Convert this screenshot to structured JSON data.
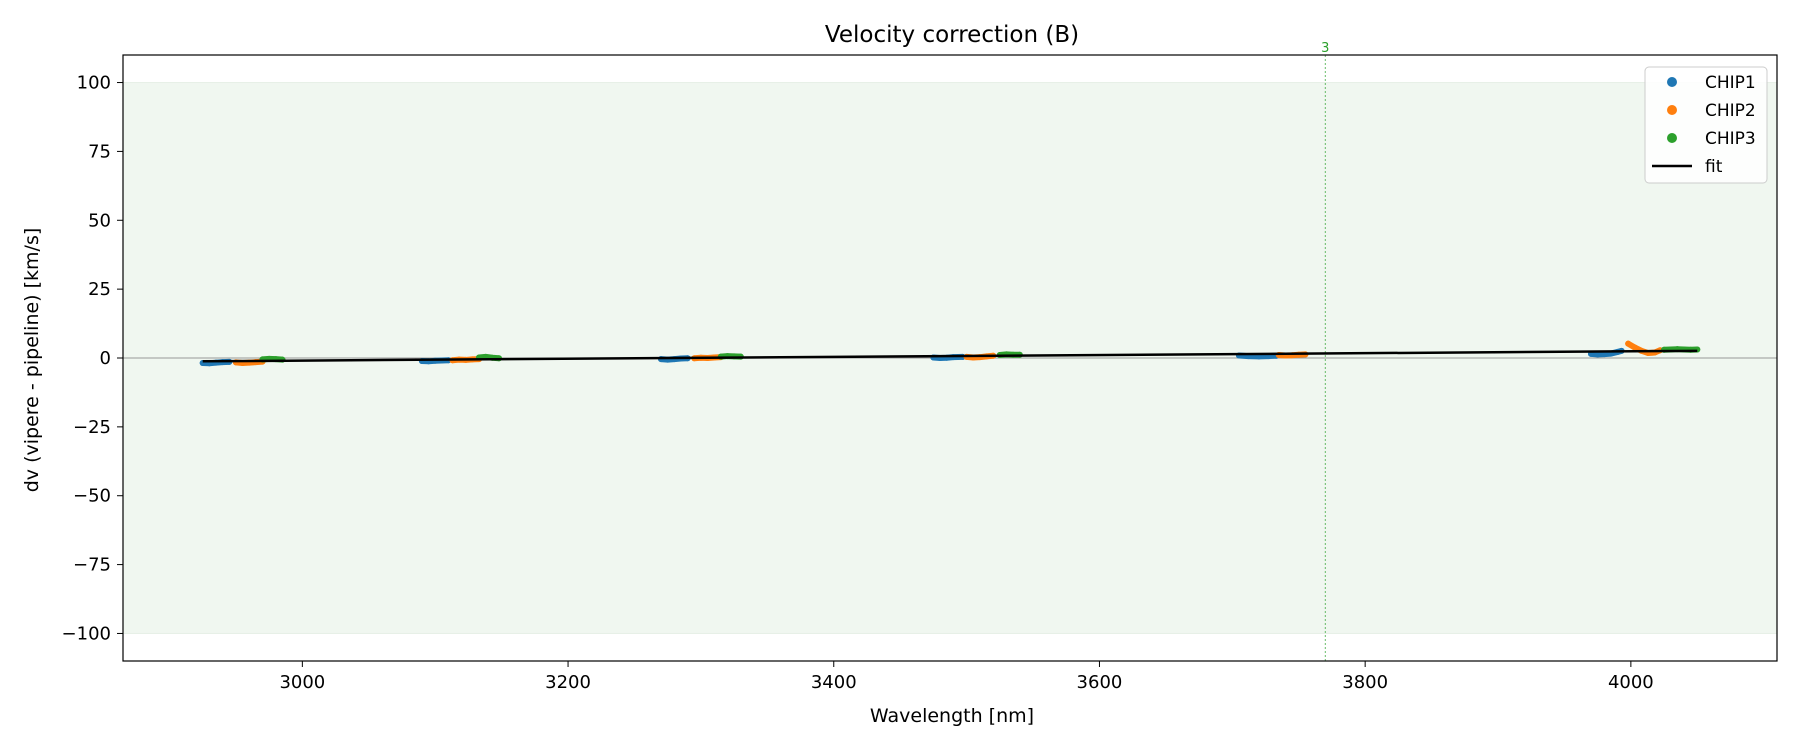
{
  "chart_data": {
    "type": "scatter",
    "title": "Velocity correction (B)",
    "xlabel": "Wavelength [nm]",
    "ylabel": "dv (vipere - pipeline) [km/s]",
    "xlim": [
      2865,
      4110
    ],
    "ylim": [
      -110,
      110
    ],
    "xticks": [
      3000,
      3200,
      3400,
      3600,
      3800,
      4000
    ],
    "yticks": [
      100,
      75,
      50,
      25,
      0,
      -25,
      -50,
      -75,
      -100
    ],
    "xtick_labels": [
      "3000",
      "3200",
      "3400",
      "3600",
      "3800",
      "4000"
    ],
    "ytick_labels": [
      "100",
      "75",
      "50",
      "25",
      "0",
      "−25",
      "−50",
      "−75",
      "−100"
    ],
    "shaded_band": [
      -100,
      100
    ],
    "zero_line": 0,
    "vertical_marker": {
      "x": 3770,
      "label": "3",
      "color": "#2ca02c"
    },
    "legend_position": "upper right",
    "colors": {
      "CHIP1": "#1f77b4",
      "CHIP2": "#ff7f0e",
      "CHIP3": "#2ca02c",
      "fit": "#000000",
      "band": "#f0f7f0"
    },
    "series": [
      {
        "name": "CHIP1",
        "segments": [
          {
            "x": [
              2925,
              2930,
              2935,
              2940,
              2945
            ],
            "y": [
              -1.8,
              -1.9,
              -1.7,
              -1.5,
              -1.4
            ]
          },
          {
            "x": [
              3090,
              3095,
              3100,
              3105,
              3110
            ],
            "y": [
              -1.1,
              -1.2,
              -1.0,
              -0.9,
              -0.8
            ]
          },
          {
            "x": [
              3270,
              3275,
              3280,
              3285,
              3290
            ],
            "y": [
              -0.4,
              -0.6,
              -0.4,
              -0.2,
              -0.1
            ]
          },
          {
            "x": [
              3475,
              3480,
              3485,
              3490,
              3497
            ],
            "y": [
              0.2,
              0.0,
              0.1,
              0.3,
              0.4
            ]
          },
          {
            "x": [
              3705,
              3712,
              3720,
              3727,
              3733
            ],
            "y": [
              0.9,
              0.7,
              0.6,
              0.7,
              0.8
            ]
          },
          {
            "x": [
              3970,
              3975,
              3980,
              3985,
              3990,
              3993
            ],
            "y": [
              1.5,
              1.3,
              1.4,
              1.6,
              2.2,
              2.6
            ]
          }
        ]
      },
      {
        "name": "CHIP2",
        "segments": [
          {
            "x": [
              2950,
              2955,
              2960,
              2965,
              2970
            ],
            "y": [
              -1.6,
              -1.8,
              -1.7,
              -1.5,
              -1.3
            ]
          },
          {
            "x": [
              3113,
              3118,
              3123,
              3128,
              3133
            ],
            "y": [
              -0.8,
              -0.6,
              -0.7,
              -0.5,
              -0.4
            ]
          },
          {
            "x": [
              3295,
              3300,
              3305,
              3310,
              3315
            ],
            "y": [
              -0.1,
              0.1,
              0.0,
              0.2,
              0.3
            ]
          },
          {
            "x": [
              3500,
              3505,
              3510,
              3515,
              3520
            ],
            "y": [
              0.4,
              0.2,
              0.3,
              0.6,
              0.8
            ]
          },
          {
            "x": [
              3735,
              3740,
              3745,
              3750,
              3755
            ],
            "y": [
              1.1,
              0.9,
              1.0,
              1.2,
              1.3
            ]
          },
          {
            "x": [
              3998,
              4003,
              4008,
              4013,
              4018,
              4022
            ],
            "y": [
              5.2,
              3.8,
              2.6,
              1.8,
              2.0,
              2.8
            ]
          }
        ]
      },
      {
        "name": "CHIP3",
        "segments": [
          {
            "x": [
              2970,
              2975,
              2980,
              2985
            ],
            "y": [
              -0.5,
              -0.3,
              -0.4,
              -0.6
            ]
          },
          {
            "x": [
              3133,
              3138,
              3143,
              3148
            ],
            "y": [
              0.2,
              0.4,
              0.1,
              -0.1
            ]
          },
          {
            "x": [
              3315,
              3320,
              3325,
              3330
            ],
            "y": [
              0.5,
              0.7,
              0.6,
              0.5
            ]
          },
          {
            "x": [
              3525,
              3530,
              3535,
              3540
            ],
            "y": [
              1.1,
              1.3,
              1.2,
              1.2
            ]
          },
          {
            "x": [
              4025,
              4030,
              4035,
              4040,
              4045,
              4050
            ],
            "y": [
              3.0,
              3.1,
              3.2,
              3.1,
              3.0,
              3.1
            ]
          }
        ]
      }
    ],
    "fit": {
      "name": "fit",
      "x": [
        2925,
        4050
      ],
      "y": [
        -1.2,
        2.6
      ]
    },
    "legend": [
      "CHIP1",
      "CHIP2",
      "CHIP3",
      "fit"
    ]
  }
}
